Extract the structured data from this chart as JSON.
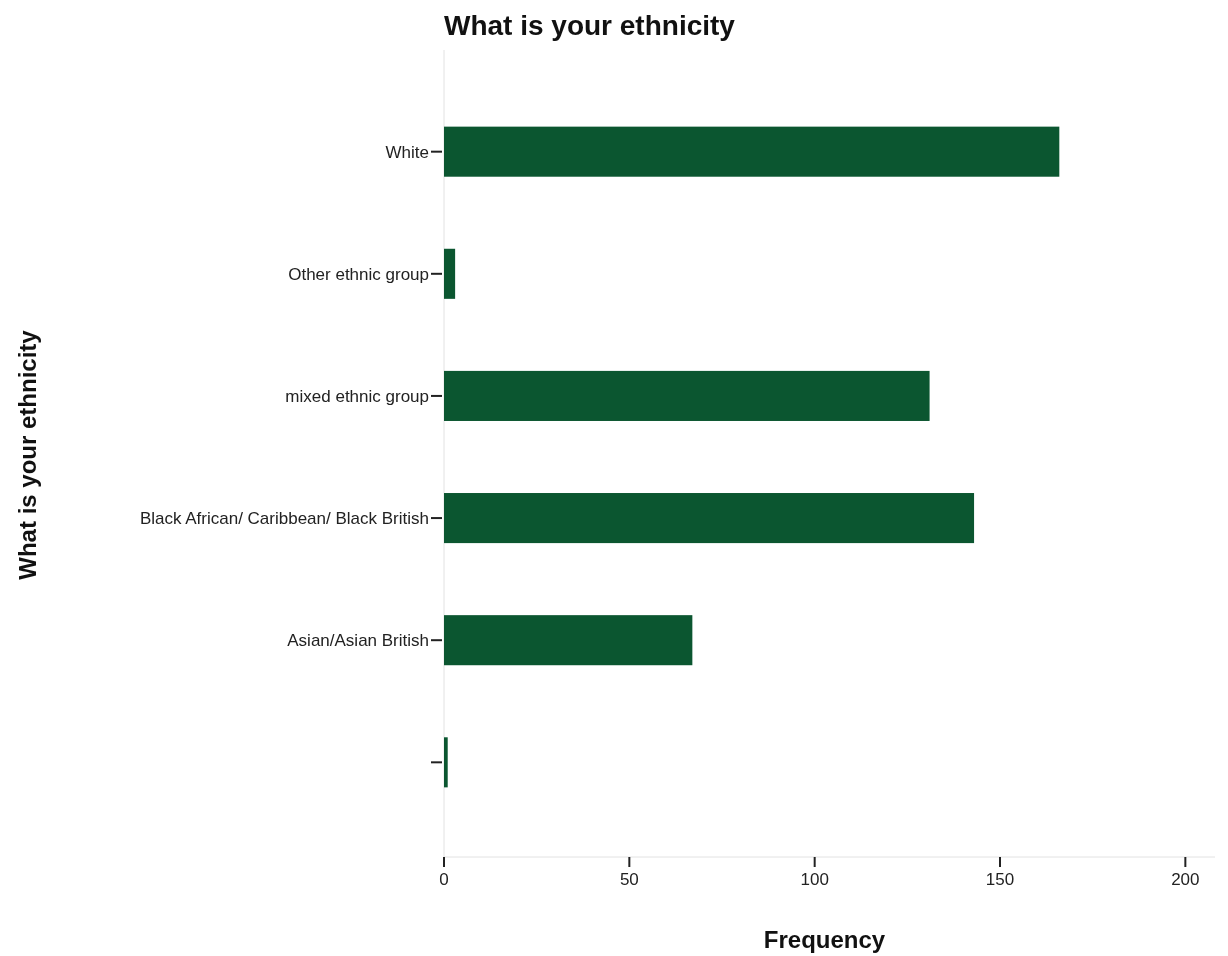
{
  "chart_data": {
    "type": "bar",
    "orientation": "horizontal",
    "title": "What is your ethnicity",
    "xlabel": "Frequency",
    "ylabel": "What is your ethnicity",
    "categories": [
      "White",
      "Other ethnic group",
      "mixed ethnic group",
      "Black African/ Caribbean/ Black British",
      "Asian/Asian British",
      null
    ],
    "values": [
      166,
      3,
      131,
      143,
      67,
      1
    ],
    "color": "#0b5630",
    "xlim": [
      0,
      208
    ],
    "xticks": [
      0,
      50,
      100,
      150,
      200
    ]
  }
}
